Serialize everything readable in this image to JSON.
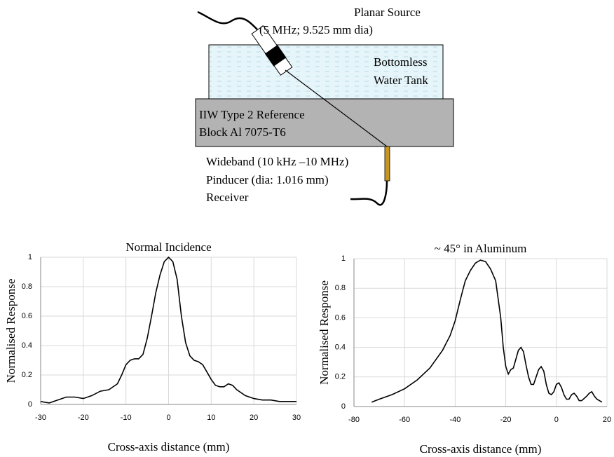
{
  "diagram": {
    "source_label": "Planar Source",
    "source_spec": "(5 MHz; 9.525 mm dia)",
    "tank_line1": "Bottomless",
    "tank_line2": "Water Tank",
    "block_line1": "IIW Type 2 Reference",
    "block_line2": "Block  Al  7075-T6",
    "receiver_line1": "Wideband (10 kHz –10 MHz)",
    "receiver_line2": "Pinducer (dia: 1.016 mm)",
    "receiver_line3": "Receiver"
  },
  "chart_data": [
    {
      "type": "line",
      "title": "Normal Incidence",
      "xlabel": "Cross-axis distance (mm)",
      "ylabel": "Normalised Response",
      "x": [
        -30,
        -28,
        -26,
        -24,
        -22,
        -20,
        -18,
        -16,
        -14,
        -12,
        -11,
        -10,
        -9,
        -8,
        -7,
        -6,
        -5,
        -4,
        -3,
        -2,
        -1,
        0,
        1,
        2,
        3,
        4,
        5,
        6,
        7,
        8,
        9,
        10,
        11,
        12,
        13,
        14,
        15,
        16,
        18,
        20,
        22,
        24,
        26,
        28,
        30
      ],
      "values": [
        0.02,
        0.01,
        0.03,
        0.05,
        0.05,
        0.04,
        0.06,
        0.09,
        0.1,
        0.14,
        0.2,
        0.27,
        0.3,
        0.31,
        0.31,
        0.34,
        0.45,
        0.6,
        0.76,
        0.88,
        0.97,
        1.0,
        0.97,
        0.85,
        0.6,
        0.42,
        0.33,
        0.3,
        0.29,
        0.27,
        0.22,
        0.17,
        0.13,
        0.12,
        0.12,
        0.14,
        0.13,
        0.1,
        0.06,
        0.04,
        0.03,
        0.03,
        0.02,
        0.02,
        0.02
      ],
      "color": "#000000",
      "xlim": [
        -30,
        30
      ],
      "xticks": [
        -30,
        -20,
        -10,
        0,
        10,
        20,
        30
      ],
      "ylim": [
        0,
        1
      ],
      "yticks": [
        0,
        0.2,
        0.4,
        0.6,
        0.8,
        1
      ],
      "grid": true
    },
    {
      "type": "line",
      "title": "~ 45° in Aluminum",
      "xlabel": "Cross-axis distance (mm)",
      "ylabel": "Normalised Response",
      "x": [
        -73,
        -70,
        -65,
        -60,
        -55,
        -50,
        -45,
        -42,
        -40,
        -38,
        -36,
        -34,
        -32,
        -30,
        -28,
        -26,
        -24,
        -22,
        -21,
        -20,
        -19,
        -18,
        -17,
        -16,
        -15,
        -14,
        -13,
        -12,
        -11,
        -10,
        -9,
        -8,
        -7,
        -6,
        -5,
        -4,
        -3,
        -2,
        -1,
        0,
        1,
        2,
        3,
        4,
        5,
        6,
        7,
        8,
        9,
        10,
        12,
        13,
        14,
        15,
        16,
        17,
        18
      ],
      "values": [
        0.03,
        0.05,
        0.08,
        0.12,
        0.18,
        0.26,
        0.38,
        0.48,
        0.58,
        0.72,
        0.85,
        0.92,
        0.97,
        0.99,
        0.98,
        0.93,
        0.85,
        0.6,
        0.4,
        0.27,
        0.22,
        0.25,
        0.26,
        0.32,
        0.38,
        0.4,
        0.37,
        0.28,
        0.2,
        0.15,
        0.15,
        0.2,
        0.25,
        0.27,
        0.24,
        0.15,
        0.09,
        0.08,
        0.1,
        0.15,
        0.16,
        0.13,
        0.08,
        0.05,
        0.05,
        0.08,
        0.09,
        0.07,
        0.04,
        0.04,
        0.07,
        0.09,
        0.1,
        0.07,
        0.05,
        0.04,
        0.03
      ],
      "color": "#000000",
      "xlim": [
        -80,
        20
      ],
      "xticks": [
        -80,
        -60,
        -40,
        -20,
        0,
        20
      ],
      "ylim": [
        0,
        1
      ],
      "yticks": [
        0,
        0.2,
        0.4,
        0.6,
        0.8,
        1
      ],
      "grid": true
    }
  ]
}
